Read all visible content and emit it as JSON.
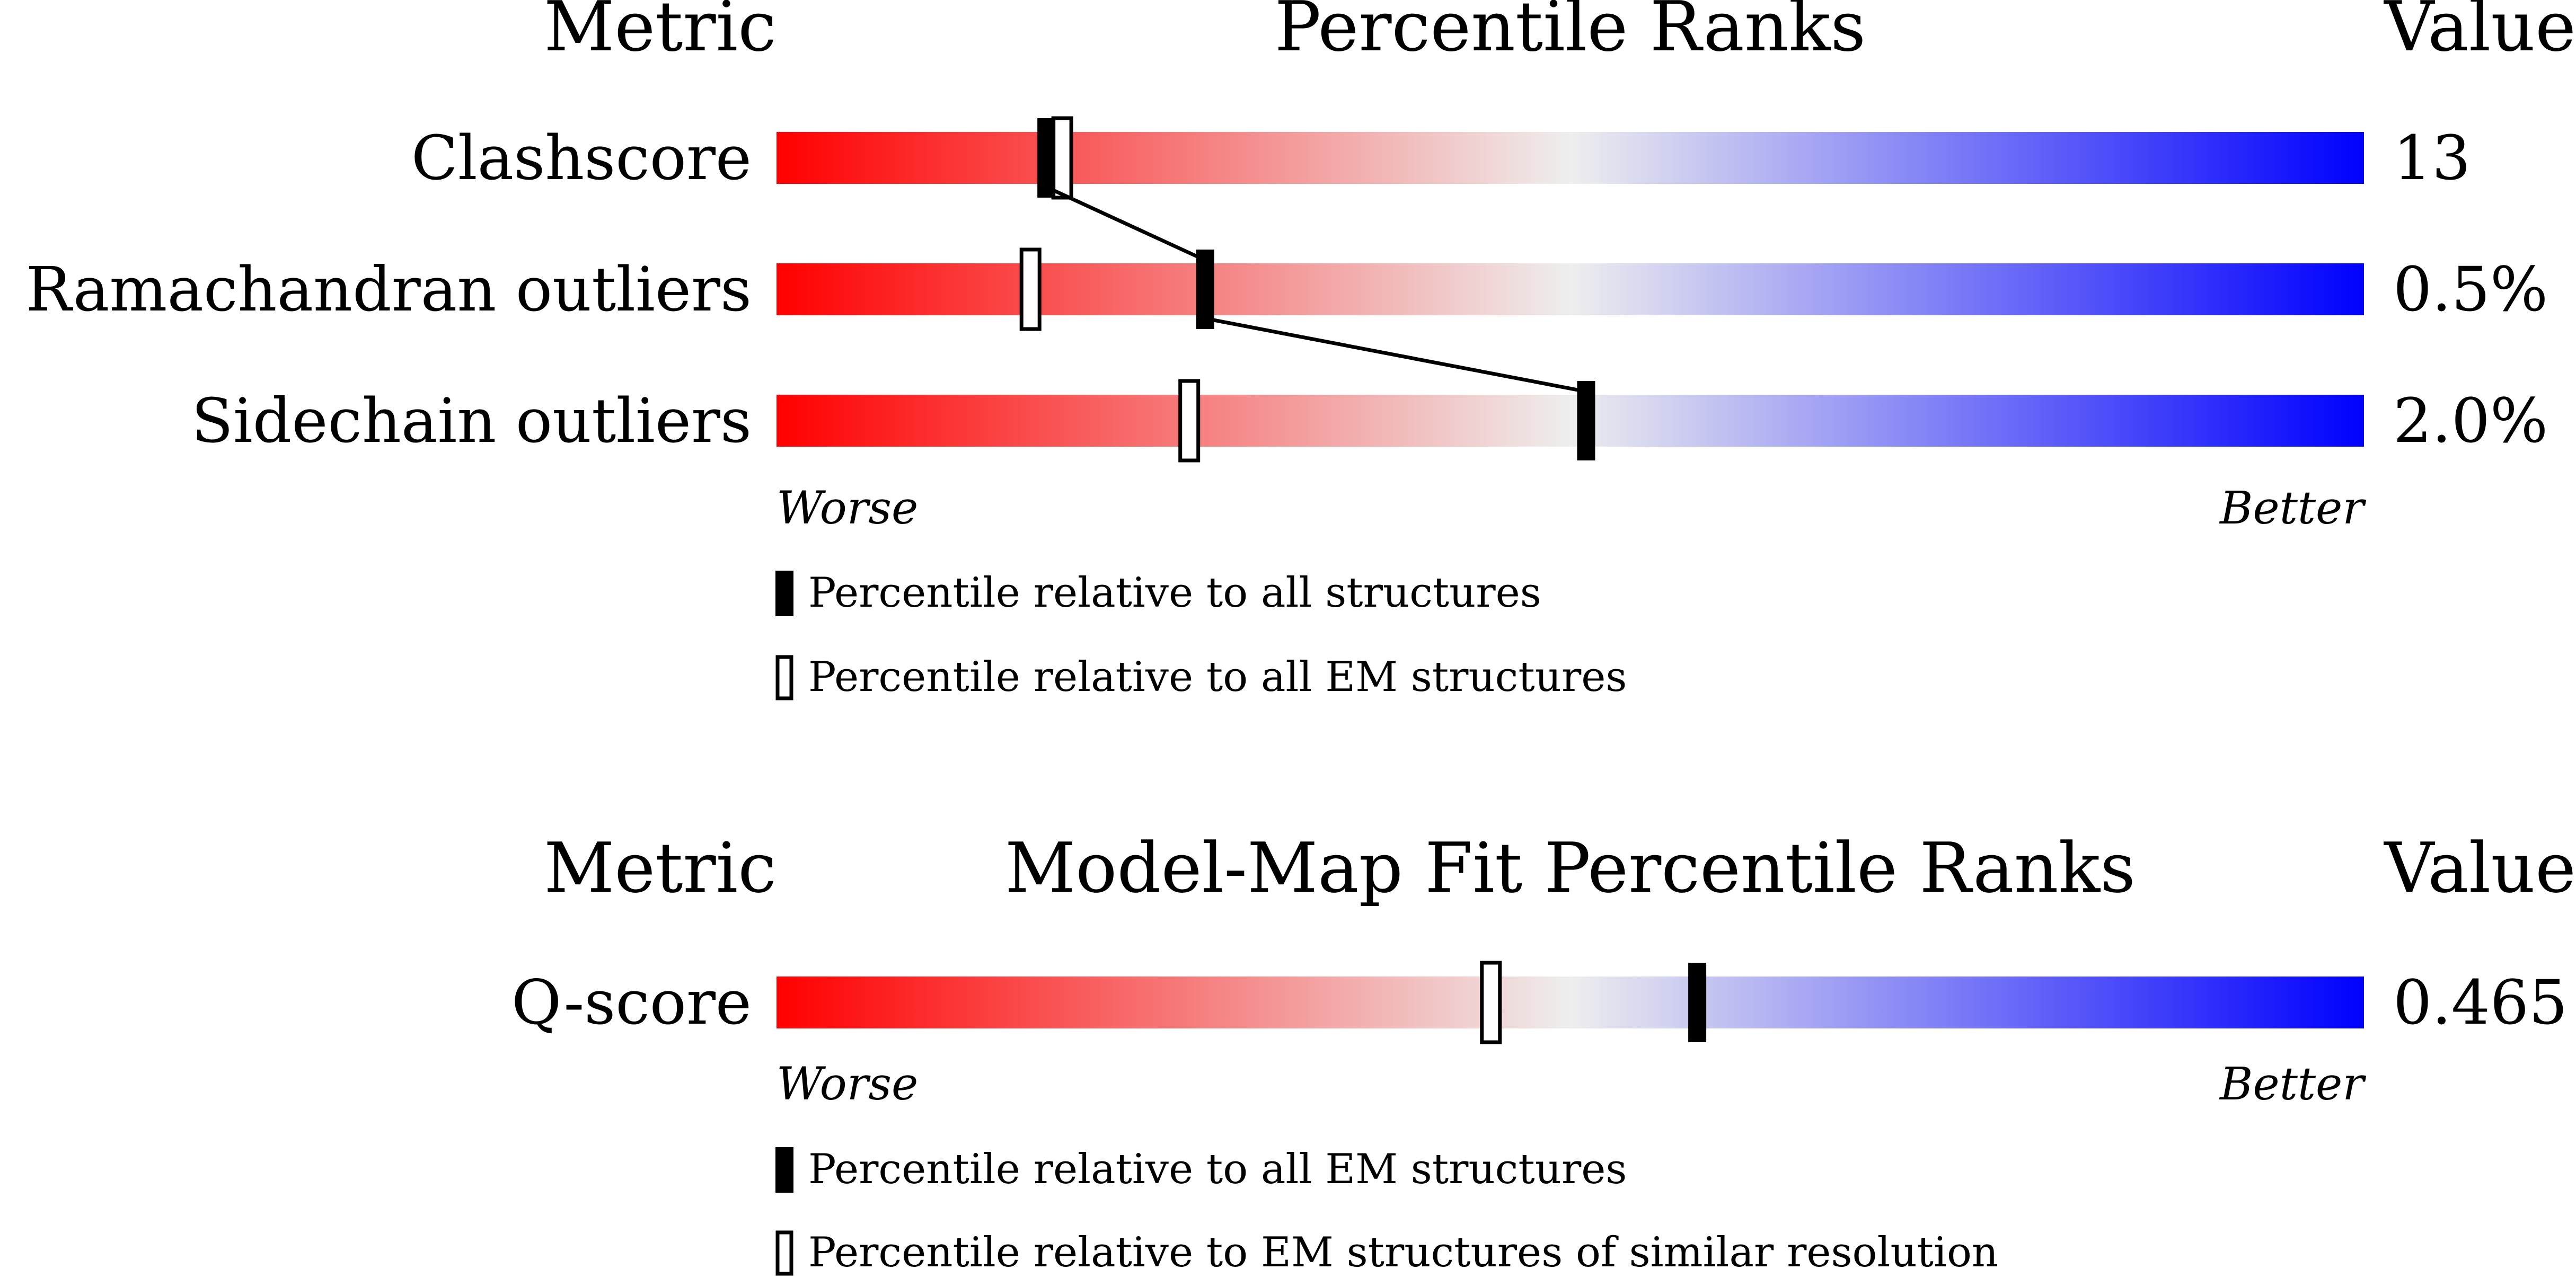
{
  "chart_data": [
    {
      "type": "percentile-bar",
      "headers": {
        "metric": "Metric",
        "title": "Percentile Ranks",
        "value": "Value"
      },
      "scale": {
        "min": 0,
        "max": 100,
        "low_label": "Worse",
        "high_label": "Better"
      },
      "rows": [
        {
          "metric": "Clashscore",
          "value": "13",
          "percentile_all": 17,
          "percentile_em": 18
        },
        {
          "metric": "Ramachandran outliers",
          "value": "0.5%",
          "percentile_all": 27,
          "percentile_em": 16
        },
        {
          "metric": "Sidechain outliers",
          "value": "2.0%",
          "percentile_all": 51,
          "percentile_em": 26
        }
      ],
      "legend": [
        {
          "marker": "filled",
          "label": "Percentile relative to all structures"
        },
        {
          "marker": "hollow",
          "label": "Percentile relative to all EM structures"
        }
      ],
      "connect_filled_markers": true
    },
    {
      "type": "percentile-bar",
      "headers": {
        "metric": "Metric",
        "title": "Model-Map Fit Percentile Ranks",
        "value": "Value"
      },
      "scale": {
        "min": 0,
        "max": 100,
        "low_label": "Worse",
        "high_label": "Better"
      },
      "rows": [
        {
          "metric": "Q-score",
          "value": "0.465",
          "percentile_all": 58,
          "percentile_em": 45
        }
      ],
      "legend": [
        {
          "marker": "filled",
          "label": "Percentile relative to all EM structures"
        },
        {
          "marker": "hollow",
          "label": "Percentile relative to EM structures of similar resolution"
        }
      ],
      "connect_filled_markers": false
    }
  ],
  "colors": {
    "worse": "#ff0000",
    "middle": "#eeeeee",
    "better": "#0000ff",
    "marker": "#000000"
  }
}
